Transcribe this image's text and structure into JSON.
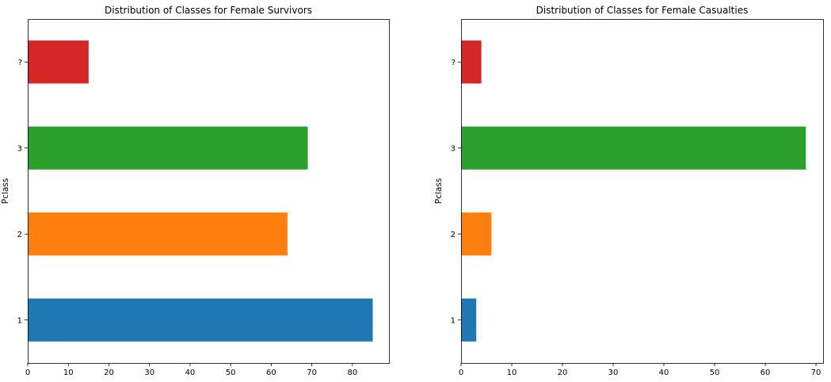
{
  "chart_data": [
    {
      "type": "bar",
      "orientation": "horizontal",
      "title": "Distribution of Classes for Female Survivors",
      "xlabel": "",
      "ylabel": "Pclass",
      "categories": [
        "1",
        "2",
        "3",
        "?"
      ],
      "values": [
        85,
        64,
        69,
        15
      ],
      "colors": [
        "#1f77b4",
        "#ff7f0e",
        "#2ca02c",
        "#d62728"
      ],
      "xlim": [
        0,
        89
      ],
      "xticks": [
        0,
        10,
        20,
        30,
        40,
        50,
        60,
        70,
        80
      ],
      "grid": false
    },
    {
      "type": "bar",
      "orientation": "horizontal",
      "title": "Distribution of Classes for Female Casualties",
      "xlabel": "",
      "ylabel": "Pclass",
      "categories": [
        "1",
        "2",
        "3",
        "?"
      ],
      "values": [
        3,
        6,
        68,
        4
      ],
      "colors": [
        "#1f77b4",
        "#ff7f0e",
        "#2ca02c",
        "#d62728"
      ],
      "xlim": [
        0,
        71.4
      ],
      "xticks": [
        0,
        10,
        20,
        30,
        40,
        50,
        60,
        70
      ],
      "grid": false
    }
  ]
}
